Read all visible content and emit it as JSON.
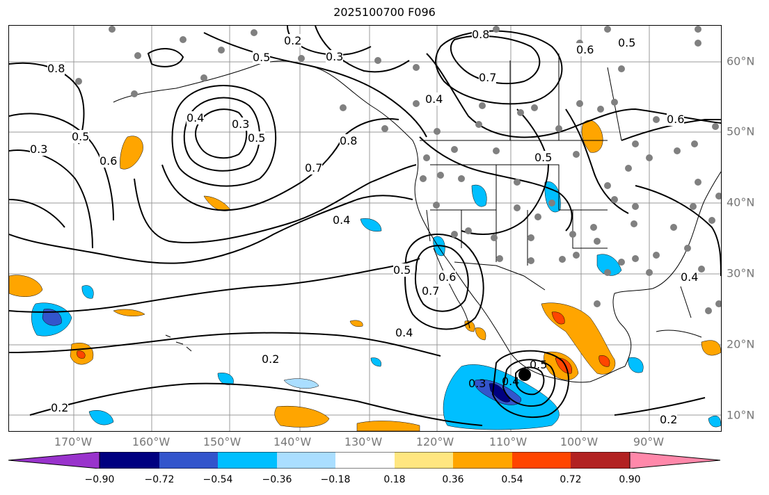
{
  "title": "2025100700 F096",
  "lon_labels": [
    "170°W",
    "160°W",
    "150°W",
    "140°W",
    "130°W",
    "120°W",
    "110°W",
    "100°W",
    "90°W"
  ],
  "lat_labels": [
    "60°N",
    "50°N",
    "40°N",
    "30°N",
    "20°N",
    "10°N"
  ],
  "contour_labels": [
    "0.2",
    "0.3",
    "0.4",
    "0.5",
    "0.6",
    "0.7",
    "0.8"
  ],
  "colorbar": {
    "ticks": [
      "−0.90",
      "−0.72",
      "−0.54",
      "−0.36",
      "−0.18",
      "0.18",
      "0.36",
      "0.54",
      "0.72",
      "0.90"
    ],
    "colors": [
      "#9933cc",
      "#000080",
      "#3355cc",
      "#00bfff",
      "#aadeff",
      "#ffffff",
      "#ffe680",
      "#ffa500",
      "#ff4500",
      "#b22222",
      "#ff88aa"
    ]
  },
  "shade_colors": {
    "light_blue": "#aadeff",
    "blue": "#00bfff",
    "medium_blue": "#3355cc",
    "navy": "#000080",
    "yellow": "#ffe680",
    "orange": "#ffa500",
    "red_orange": "#ff4500"
  },
  "marker": "storm-center"
}
